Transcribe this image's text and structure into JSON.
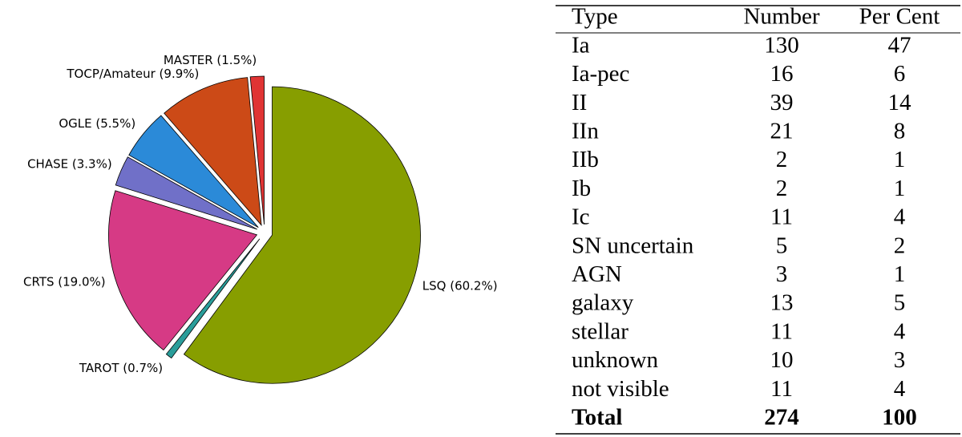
{
  "chart_data": {
    "type": "pie",
    "categories": [
      "LSQ (60.2%)",
      "TAROT (0.7%)",
      "CRTS (19.0%)",
      "CHASE (3.3%)",
      "OGLE (5.5%)",
      "TOCP/Amateur (9.9%)",
      "MASTER (1.5%)"
    ],
    "values": [
      60.2,
      0.7,
      19.0,
      3.3,
      5.5,
      9.9,
      1.5
    ],
    "colors": [
      "#879e00",
      "#2a9d9a",
      "#d63a85",
      "#7070c8",
      "#2b8ad8",
      "#cc4a17",
      "#e03434"
    ]
  },
  "table": {
    "header": [
      "Type",
      "Number",
      "Per Cent"
    ],
    "rows": [
      [
        "Ia",
        130,
        47
      ],
      [
        "Ia-pec",
        16,
        6
      ],
      [
        "II",
        39,
        14
      ],
      [
        "IIn",
        21,
        8
      ],
      [
        "IIb",
        2,
        1
      ],
      [
        "Ib",
        2,
        1
      ],
      [
        "Ic",
        11,
        4
      ],
      [
        "SN uncertain",
        5,
        2
      ],
      [
        "AGN",
        3,
        1
      ],
      [
        "galaxy",
        13,
        5
      ],
      [
        "stellar",
        11,
        4
      ],
      [
        "unknown",
        10,
        3
      ],
      [
        "not visible",
        11,
        4
      ]
    ],
    "total": [
      "Total",
      274,
      100
    ]
  }
}
